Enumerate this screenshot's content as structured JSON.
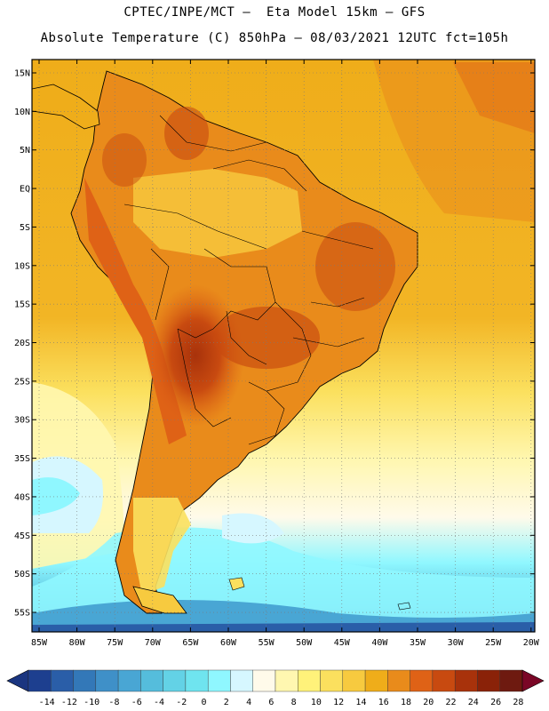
{
  "header": {
    "line1": "CPTEC/INPE/MCT –  Eta Model 15km – GFS",
    "line2": "Absolute Temperature (C) 850hPa – 08/03/2021 12UTC fct=105h"
  },
  "lat_labels": [
    "15N",
    "10N",
    "5N",
    "EQ",
    "5S",
    "10S",
    "15S",
    "20S",
    "25S",
    "30S",
    "35S",
    "40S",
    "45S",
    "50S",
    "55S"
  ],
  "lon_labels": [
    "85W",
    "80W",
    "75W",
    "70W",
    "65W",
    "60W",
    "55W",
    "50W",
    "45W",
    "40W",
    "35W",
    "30W",
    "25W",
    "20W"
  ],
  "colorbar": {
    "labels": [
      "-14",
      "-12",
      "-10",
      "-8",
      "-6",
      "-4",
      "-2",
      "0",
      "2",
      "4",
      "6",
      "8",
      "10",
      "12",
      "14",
      "16",
      "18",
      "20",
      "22",
      "24",
      "26",
      "28"
    ],
    "colors": [
      "#1d3f8f",
      "#2a5ea8",
      "#3378b8",
      "#3f90c8",
      "#49a6d4",
      "#55bddc",
      "#63d2e6",
      "#6fe4ef",
      "#8ff7ff",
      "#d6f7ff",
      "#fffaea",
      "#fff7b0",
      "#fff27a",
      "#fbe05e",
      "#f7ca3f",
      "#efad1a",
      "#e98b1b",
      "#df6216",
      "#c84a10",
      "#a8320b",
      "#8a2208",
      "#6e1a10"
    ],
    "left_arrow_color": "#1a3580",
    "right_arrow_color": "#7a0626"
  }
}
